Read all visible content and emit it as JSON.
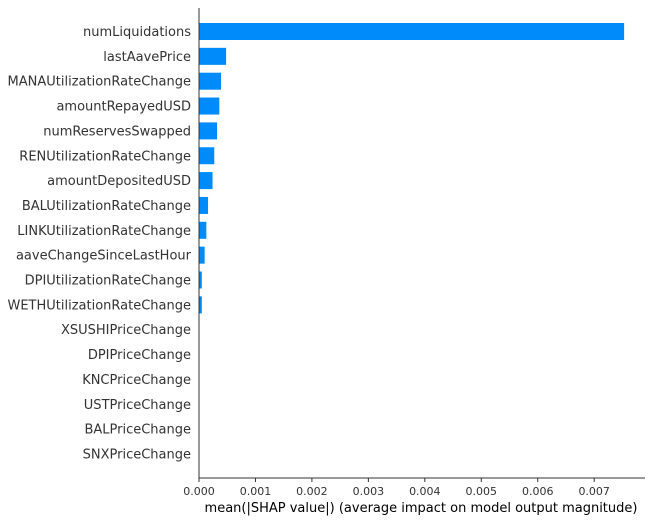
{
  "chart_data": {
    "type": "bar",
    "orientation": "horizontal",
    "categories": [
      "numLiquidations",
      "lastAavePrice",
      "MANAUtilizationRateChange",
      "amountRepayedUSD",
      "numReservesSwapped",
      "RENUtilizationRateChange",
      "amountDepositedUSD",
      "BALUtilizationRateChange",
      "LINKUtilizationRateChange",
      "aaveChangeSinceLastHour",
      "DPIUtilizationRateChange",
      "WETHUtilizationRateChange",
      "XSUSHIPriceChange",
      "DPIPriceChange",
      "KNCPriceChange",
      "USTPriceChange",
      "BALPriceChange",
      "SNXPriceChange"
    ],
    "values": [
      0.00753,
      0.00048,
      0.00039,
      0.00036,
      0.00032,
      0.00027,
      0.00024,
      0.00016,
      0.00013,
      0.0001,
      5e-05,
      5e-05,
      0.0,
      0.0,
      0.0,
      0.0,
      0.0,
      0.0
    ],
    "xlabel": "mean(|SHAP value|) (average impact on model output magnitude)",
    "xlim": [
      0,
      0.0079
    ],
    "xticks": [
      "0.000",
      "0.001",
      "0.002",
      "0.003",
      "0.004",
      "0.005",
      "0.006",
      "0.007"
    ],
    "grid": false,
    "bar_color": "#008bfb"
  }
}
